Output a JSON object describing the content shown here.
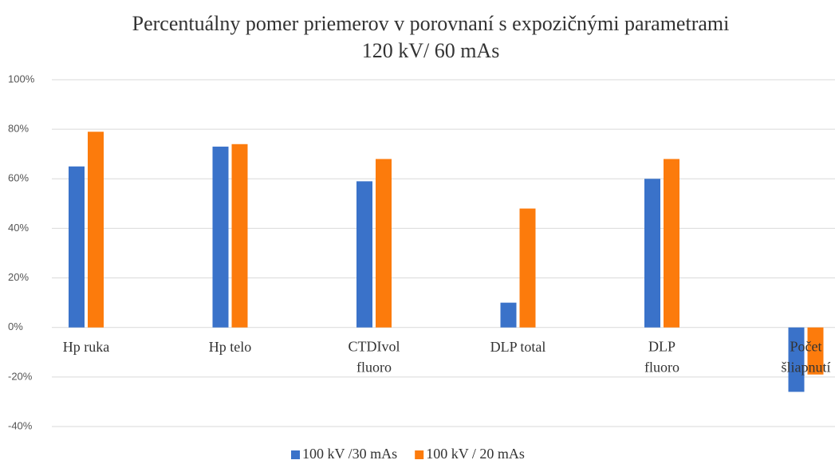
{
  "chart_data": {
    "type": "bar",
    "title": "Percentuálny pomer priemerov v porovnaní s expozičnými parametrami",
    "subtitle": "120 kV/ 60 mAs",
    "categories": [
      "Hp ruka",
      "Hp telo",
      "CTDIvol fluoro",
      "DLP total",
      "DLP fluoro",
      "Počet šliapnutí"
    ],
    "series": [
      {
        "name": "100 kV /30 mAs",
        "color": "#3a72c9",
        "values": [
          65,
          73,
          59,
          10,
          60,
          -26
        ]
      },
      {
        "name": "100 kV / 20 mAs",
        "color": "#fc7b0c",
        "values": [
          79,
          74,
          68,
          48,
          68,
          -19
        ]
      }
    ],
    "ylim": [
      -40,
      100
    ],
    "yticks": [
      {
        "value": -40,
        "label": "-40%"
      },
      {
        "value": -20,
        "label": "-20%"
      },
      {
        "value": 0,
        "label": "0%"
      },
      {
        "value": 20,
        "label": "20%"
      },
      {
        "value": 40,
        "label": "40%"
      },
      {
        "value": 60,
        "label": "60%"
      },
      {
        "value": 80,
        "label": "80%"
      },
      {
        "value": 100,
        "label": "100%"
      }
    ],
    "grid": true,
    "legend": "bottom"
  }
}
